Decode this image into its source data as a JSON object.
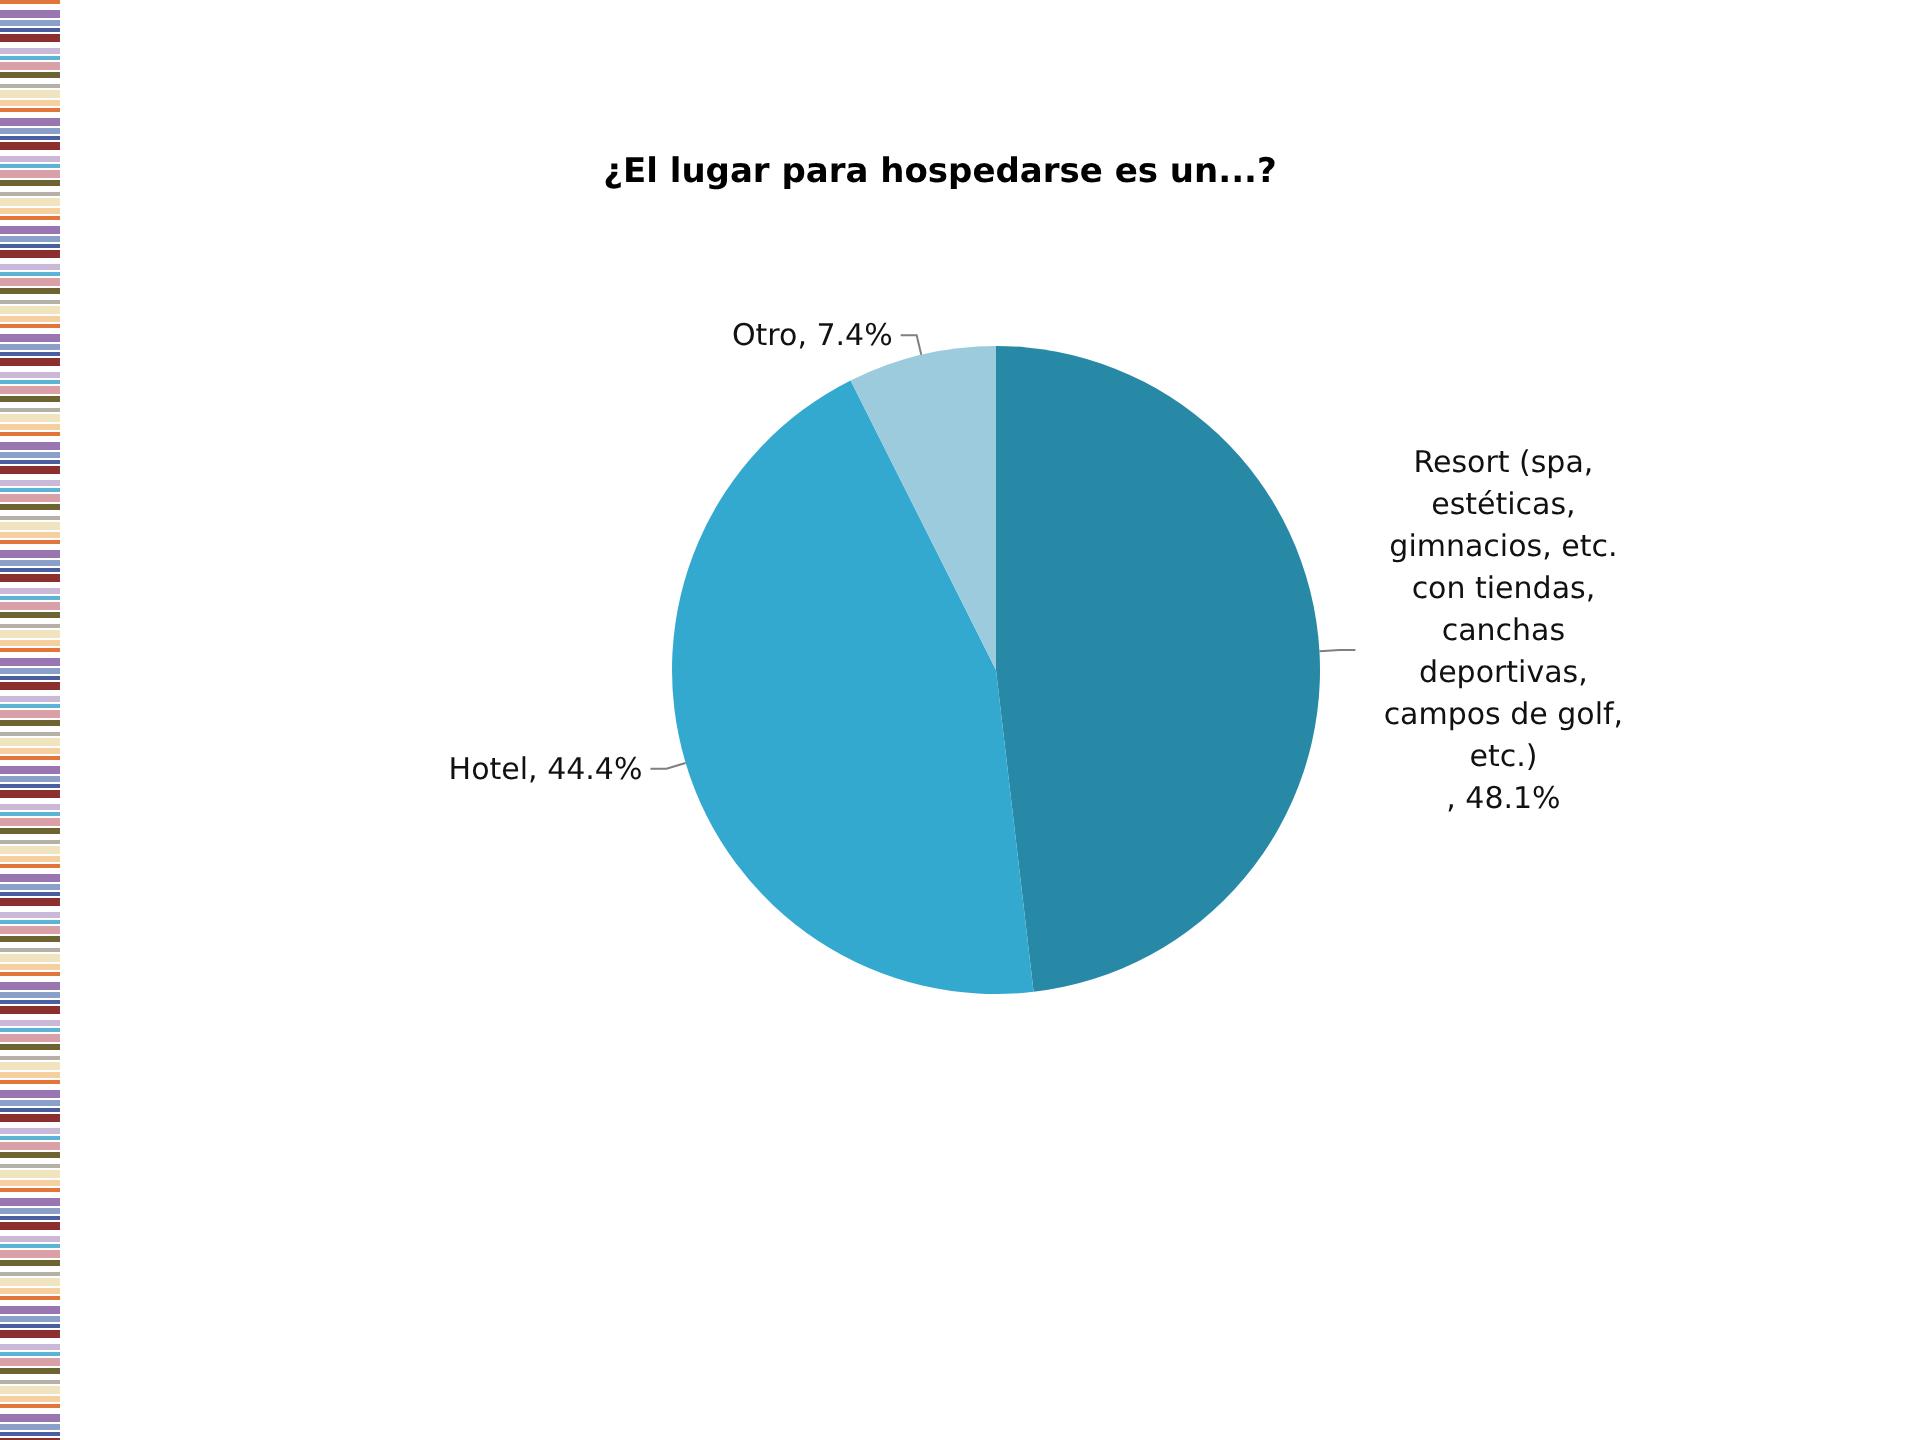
{
  "chart_data": {
    "type": "pie",
    "title": "¿El lugar para hospedarse es un...?",
    "categories": [
      "Resort (spa, estéticas, gimnacios, etc. con tiendas, canchas deportivas, campos de golf, etc.)",
      "Hotel",
      "Otro"
    ],
    "values": [
      48.1,
      44.4,
      7.4
    ],
    "value_labels": [
      ", 48.1%",
      ", 44.4%",
      ", 7.4%"
    ],
    "colors": [
      "#2889a6",
      "#33a9d0",
      "#9ccbde"
    ]
  }
}
